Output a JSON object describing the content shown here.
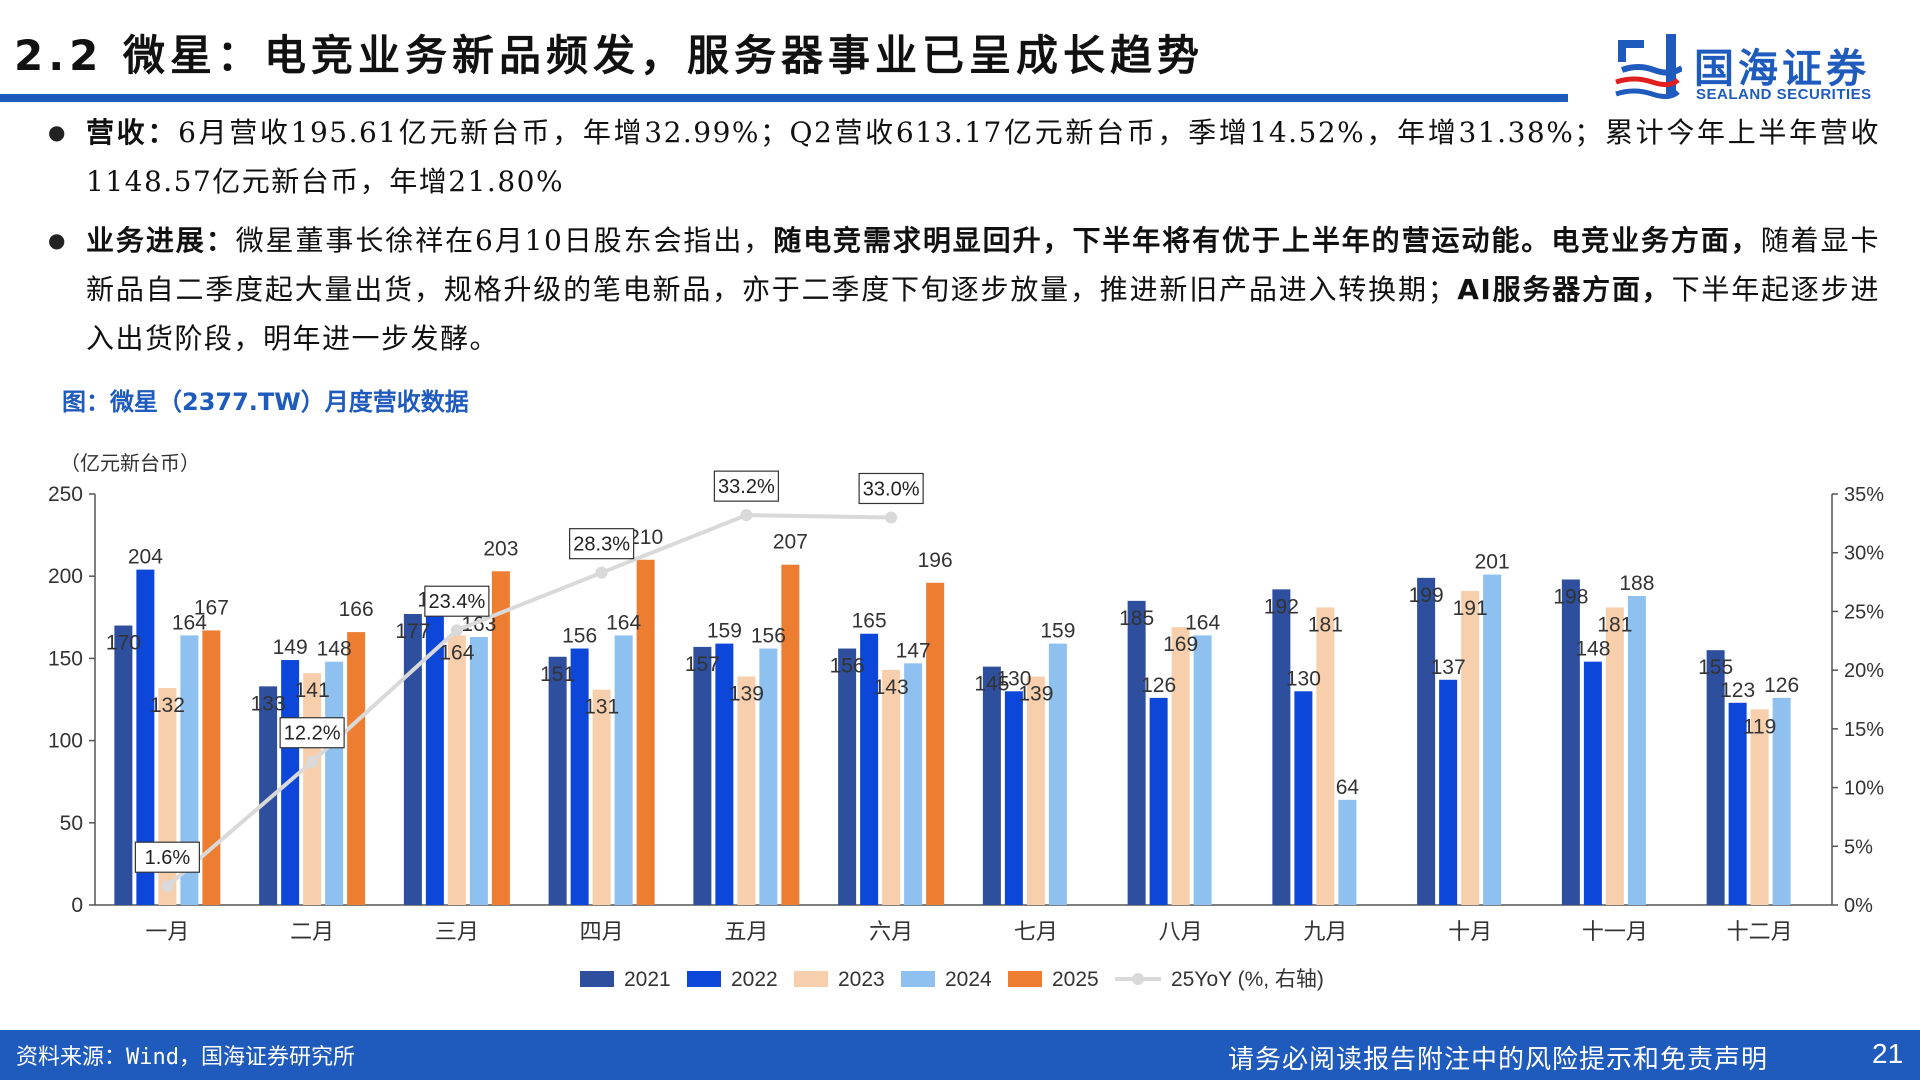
{
  "header": {
    "title": "2.2 微星：电竞业务新品频发，服务器事业已呈成长趋势",
    "logo_cn": "国海证券",
    "logo_en": "SEALAND SECURITIES",
    "accent": "#1f5bbd"
  },
  "bullets": [
    {
      "label": "营收：",
      "text": "6月营收195.61亿元新台币，年增32.99%；Q2营收613.17亿元新台币，季增14.52%，年增31.38%；累计今年上半年营收1148.57亿元新台币，年增21.80%"
    },
    {
      "label": "业务进展：",
      "text1": "微星董事长徐祥在6月10日股东会指出，",
      "bold1": "随电竞需求明显回升，下半年将有优于上半年的营运动能。电竞业务方面，",
      "text2": "随着显卡新品自二季度起大量出货，规格升级的笔电新品，亦于二季度下旬逐步放量，推进新旧产品进入转换期；",
      "bold2": "AI服务器方面，",
      "text3": "下半年起逐步进入出货阶段，明年进一步发酵。"
    }
  ],
  "figure_title": "图：微星（2377.TW）月度营收数据",
  "chart_data": {
    "type": "bar",
    "categories": [
      "一月",
      "二月",
      "三月",
      "四月",
      "五月",
      "六月",
      "七月",
      "八月",
      "九月",
      "十月",
      "十一月",
      "十二月"
    ],
    "series": [
      {
        "name": "2021",
        "color": "#2e4f9e",
        "values": [
          170,
          133,
          177,
          151,
          157,
          156,
          145,
          185,
          192,
          199,
          198,
          155
        ]
      },
      {
        "name": "2022",
        "color": "#0d47d9",
        "values": [
          204,
          149,
          178,
          156,
          159,
          165,
          130,
          126,
          130,
          137,
          148,
          123
        ]
      },
      {
        "name": "2023",
        "color": "#f7cfad",
        "values": [
          132,
          141,
          164,
          131,
          139,
          143,
          139,
          169,
          181,
          191,
          181,
          119
        ]
      },
      {
        "name": "2024",
        "color": "#8ec0f0",
        "values": [
          164,
          148,
          163,
          164,
          156,
          147,
          159,
          164,
          64,
          201,
          188,
          126
        ]
      },
      {
        "name": "2025",
        "color": "#ed7d31",
        "values": [
          167,
          166,
          203,
          210,
          207,
          196,
          null,
          null,
          null,
          null,
          null,
          null
        ]
      }
    ],
    "line": {
      "name": "25YoY (%, 右轴)",
      "color": "#d9d9d9",
      "values": [
        1.6,
        12.2,
        23.4,
        28.3,
        33.2,
        33.0,
        null,
        null,
        null,
        null,
        null,
        null
      ],
      "labels": [
        "1.6%",
        "12.2%",
        "23.4%",
        "28.3%",
        "33.2%",
        "33.0%"
      ]
    },
    "ylabel": "（亿元新台币）",
    "ylim": [
      0,
      250
    ],
    "yticks": [
      "0",
      "50",
      "100",
      "150",
      "200",
      "250"
    ],
    "y2lim": [
      0,
      35
    ],
    "y2ticks": [
      "0%",
      "5%",
      "10%",
      "15%",
      "20%",
      "25%",
      "30%",
      "35%"
    ],
    "legend_position": "bottom"
  },
  "footer": {
    "source": "资料来源：Wind，国海证券研究所",
    "disclaimer": "请务必阅读报告附注中的风险提示和免责声明",
    "page": "21"
  }
}
